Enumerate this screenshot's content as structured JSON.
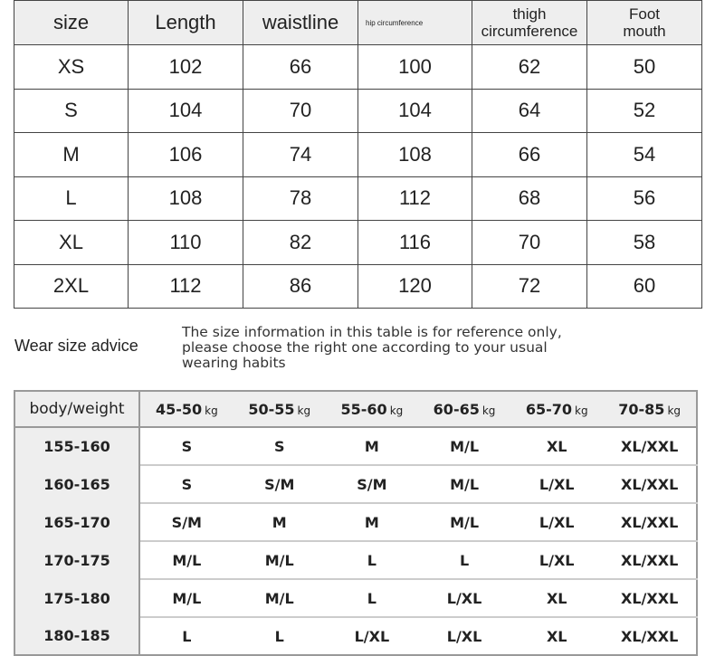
{
  "size_table": {
    "headers": [
      "size",
      "Length",
      "waistline",
      "hip circumference",
      "thigh circumference",
      "Foot mouth"
    ],
    "rows": [
      [
        "XS",
        "102",
        "66",
        "100",
        "62",
        "50"
      ],
      [
        "S",
        "104",
        "70",
        "104",
        "64",
        "52"
      ],
      [
        "M",
        "106",
        "74",
        "108",
        "66",
        "54"
      ],
      [
        "L",
        "108",
        "78",
        "112",
        "68",
        "56"
      ],
      [
        "XL",
        "110",
        "82",
        "116",
        "70",
        "58"
      ],
      [
        "2XL",
        "112",
        "86",
        "120",
        "72",
        "60"
      ]
    ]
  },
  "advice": {
    "title": "Wear size advice",
    "note_lines": [
      "The size information in this table is for reference only,",
      "please choose the right one according to your usual",
      "wearing habits"
    ]
  },
  "weight_table": {
    "corner": "body/weight",
    "unit": "kg",
    "weights": [
      "45-50",
      "50-55",
      "55-60",
      "60-65",
      "65-70",
      "70-85"
    ],
    "rows": [
      {
        "height": "155-160",
        "sizes": [
          "S",
          "S",
          "M",
          "M/L",
          "XL",
          "XL/XXL"
        ]
      },
      {
        "height": "160-165",
        "sizes": [
          "S",
          "S/M",
          "S/M",
          "M/L",
          "L/XL",
          "XL/XXL"
        ]
      },
      {
        "height": "165-170",
        "sizes": [
          "S/M",
          "M",
          "M",
          "M/L",
          "L/XL",
          "XL/XXL"
        ]
      },
      {
        "height": "170-175",
        "sizes": [
          "M/L",
          "M/L",
          "L",
          "L",
          "L/XL",
          "XL/XXL"
        ]
      },
      {
        "height": "175-180",
        "sizes": [
          "M/L",
          "M/L",
          "L",
          "L/XL",
          "XL",
          "XL/XXL"
        ]
      },
      {
        "height": "180-185",
        "sizes": [
          "L",
          "L",
          "L/XL",
          "L/XL",
          "XL",
          "XL/XXL"
        ]
      }
    ]
  }
}
